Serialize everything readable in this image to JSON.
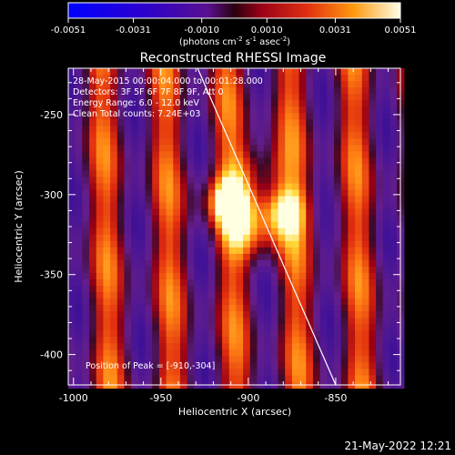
{
  "colorbar": {
    "ticks": [
      "-0.0051",
      "-0.0031",
      "-0.0010",
      "0.0010",
      "0.0031",
      "0.0051"
    ],
    "units_main": "(photons cm",
    "units_sup1": "-2",
    "units_mid1": " s",
    "units_sup2": "-1",
    "units_mid2": " asec",
    "units_sup3": "-2",
    "units_end": ")"
  },
  "title": "Reconstructed RHESSI Image",
  "info": {
    "line1": "28-May-2015 00:00:04.000 to 00:01:28.000",
    "line2": "Detectors: 3F 5F 6F 7F 8F 9F, Att 0",
    "line3": "Energy Range: 6.0 - 12.0 keV",
    "line4": "Clean    Total counts: 7.24E+03"
  },
  "peak": "Position of Peak = [-910,-304]",
  "footer_date": "21-May-2022 12:21",
  "chart_data": {
    "type": "heatmap",
    "title": "Reconstructed RHESSI Image",
    "xlabel": "Heliocentric X (arcsec)",
    "ylabel": "Heliocentric Y (arcsec)",
    "xlim": [
      -1003,
      -813
    ],
    "ylim": [
      -419,
      -221
    ],
    "x_ticks": [
      -1000,
      -950,
      -900,
      -850
    ],
    "y_ticks": [
      -250,
      -300,
      -350,
      -400
    ],
    "x_tick_labels": [
      "-1000",
      "-950",
      "-900",
      "-850"
    ],
    "y_tick_labels": [
      "-250",
      "-300",
      "-350",
      "-400"
    ],
    "colorbar_range": [
      -0.0051,
      0.0051
    ],
    "peak_position": [
      -910,
      -304
    ],
    "stripe_period_arcsec": 36,
    "limb_line": [
      [
        -929,
        -221
      ],
      [
        -850,
        -419
      ]
    ],
    "sources": [
      {
        "x": -910,
        "y": -305,
        "value": 0.0051
      },
      {
        "x": -882,
        "y": -310,
        "value": 0.0045
      },
      {
        "x": -896,
        "y": -326,
        "value": 0.0031
      },
      {
        "x": -895,
        "y": -284,
        "value": 0.0028
      }
    ]
  }
}
